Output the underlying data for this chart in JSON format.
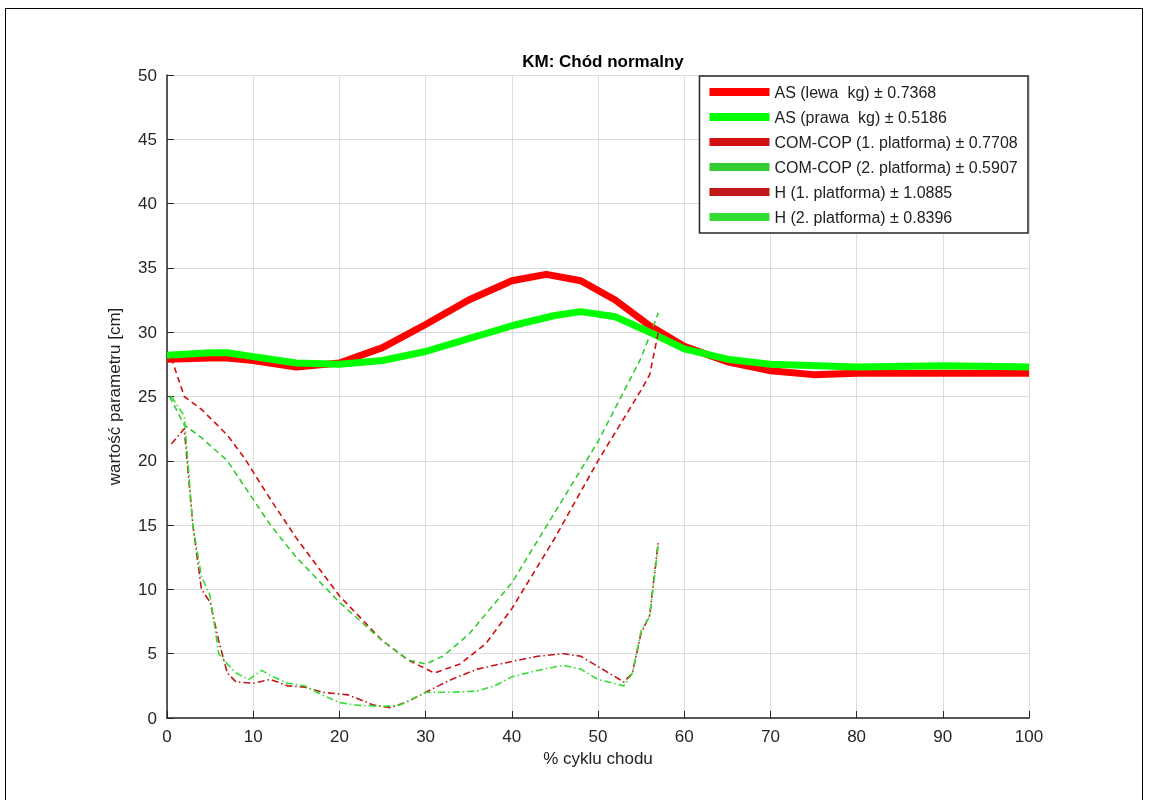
{
  "chart_data": {
    "type": "line",
    "title": "KM: Chód normalny",
    "xlabel": "% cyklu chodu",
    "ylabel": "wartość parametru [cm]",
    "xlim": [
      0,
      100
    ],
    "xticks": [
      0,
      10,
      20,
      30,
      40,
      50,
      60,
      70,
      80,
      90,
      100
    ],
    "ylim": [
      0,
      50
    ],
    "yticks": [
      0,
      5,
      10,
      15,
      20,
      25,
      30,
      35,
      40,
      45,
      50
    ],
    "grid": true,
    "legend": "top right",
    "marker": "none",
    "series": [
      {
        "name": "AS (lewa  kg) ± 0.7368",
        "color": "#ff0000",
        "line_style": "solid",
        "x": [
          0,
          5,
          7,
          10,
          15,
          20,
          25,
          30,
          35,
          40,
          44,
          48,
          52,
          56,
          60,
          65,
          70,
          75,
          80,
          90,
          100
        ],
        "values": [
          27.9,
          28.0,
          28.0,
          27.8,
          27.3,
          27.6,
          28.8,
          30.6,
          32.5,
          34.0,
          34.5,
          34.0,
          32.5,
          30.5,
          28.9,
          27.7,
          27.0,
          26.7,
          26.8,
          26.8,
          26.8
        ]
      },
      {
        "name": "AS (prawa  kg) ± 0.5186",
        "color": "#00ff00",
        "line_style": "solid",
        "x": [
          0,
          5,
          7,
          10,
          15,
          20,
          25,
          30,
          35,
          40,
          45,
          48,
          52,
          56,
          60,
          65,
          70,
          80,
          90,
          100
        ],
        "values": [
          28.2,
          28.4,
          28.4,
          28.1,
          27.6,
          27.5,
          27.8,
          28.5,
          29.5,
          30.5,
          31.3,
          31.6,
          31.2,
          30.0,
          28.7,
          27.9,
          27.5,
          27.3,
          27.4,
          27.3
        ]
      },
      {
        "name": "COM-COP (1. platforma) ± 0.7708",
        "color": "#d01010",
        "line_style": "dashed",
        "x": [
          0.5,
          2,
          4,
          7,
          9,
          12,
          15,
          20,
          25,
          28,
          31,
          34,
          37,
          40,
          45,
          50,
          55,
          56,
          57
        ],
        "values": [
          28,
          25,
          24,
          22,
          20.2,
          17,
          14,
          9.5,
          6,
          4.5,
          3.5,
          4.2,
          5.8,
          8.5,
          14,
          20,
          25.5,
          26.7,
          30
        ]
      },
      {
        "name": "COM-COP (2. platforma) ± 0.5907",
        "color": "#33cc33",
        "line_style": "dashed",
        "x": [
          0.3,
          2,
          4,
          7,
          9,
          12,
          15,
          20,
          25,
          28,
          30,
          32,
          35,
          40,
          45,
          50,
          55,
          57
        ],
        "values": [
          25,
          22.8,
          21.8,
          20,
          18,
          15,
          12.5,
          9,
          6,
          4.5,
          4.2,
          4.8,
          6.5,
          10.5,
          16,
          21.5,
          28,
          31.5
        ]
      },
      {
        "name": "H (1. platforma) ± 1.0885",
        "color": "#c01818",
        "line_style": "dashdot",
        "x": [
          0.5,
          2,
          3,
          4,
          5,
          6,
          7,
          8,
          10,
          12,
          14,
          16,
          18,
          21,
          24,
          26,
          28,
          30,
          33,
          36,
          40,
          43,
          46,
          48,
          50,
          53,
          54,
          55,
          56,
          57
        ],
        "values": [
          21.3,
          22.5,
          15,
          10,
          9,
          6,
          3.5,
          2.8,
          2.7,
          3.0,
          2.5,
          2.4,
          2.0,
          1.8,
          1.0,
          0.8,
          1.3,
          2.0,
          3.0,
          3.8,
          4.4,
          4.8,
          5.0,
          4.8,
          4.0,
          2.8,
          3.5,
          6.6,
          8,
          13.8
        ]
      },
      {
        "name": "H (2. platforma) ± 0.8396",
        "color": "#33dd33",
        "line_style": "dashdot",
        "x": [
          0.5,
          2,
          3,
          4,
          5,
          6,
          7,
          8,
          9.5,
          11,
          12,
          14,
          16,
          18,
          20,
          22,
          25,
          27,
          30,
          33,
          36,
          38,
          40,
          43,
          46,
          48,
          50,
          53,
          54,
          55,
          56,
          57
        ],
        "values": [
          25,
          23.5,
          15,
          11,
          9.5,
          5,
          4.2,
          3.5,
          3.0,
          3.7,
          3.3,
          2.7,
          2.5,
          1.8,
          1.2,
          1.0,
          0.9,
          1.0,
          2.0,
          2.0,
          2.1,
          2.5,
          3.2,
          3.7,
          4.1,
          3.8,
          3.0,
          2.5,
          3.5,
          6.8,
          7.9,
          13.5
        ]
      }
    ]
  }
}
